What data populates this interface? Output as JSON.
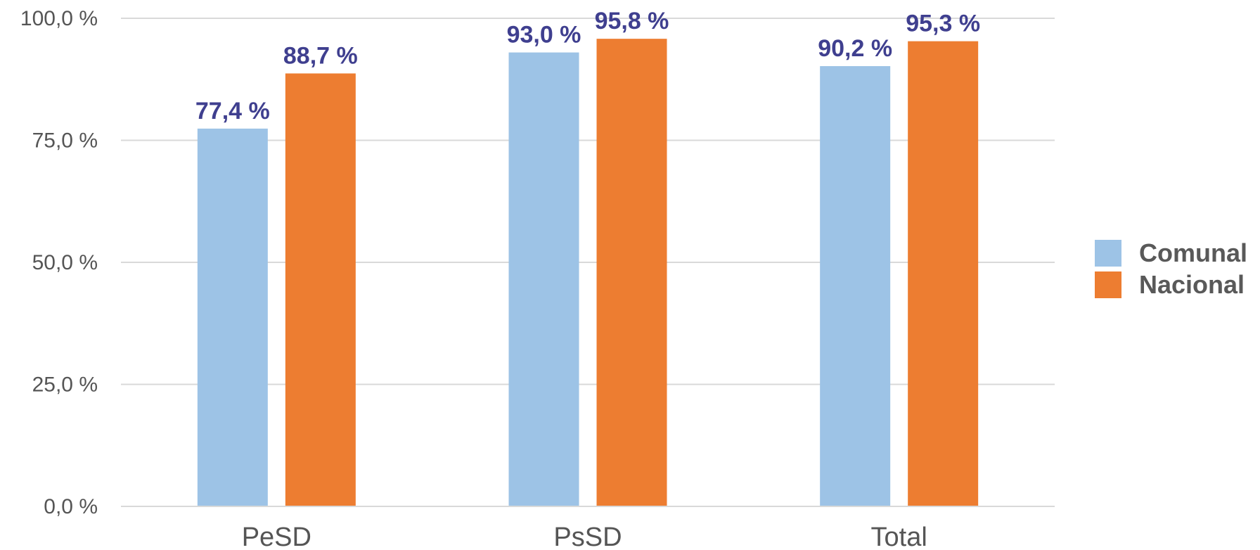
{
  "chart_data": {
    "type": "bar",
    "categories": [
      "PeSD",
      "PsSD",
      "Total"
    ],
    "series": [
      {
        "name": "Comunal",
        "values": [
          77.4,
          93.0,
          90.2
        ],
        "color": "#9DC3E6",
        "labels": [
          "77,4 %",
          "93,0 %",
          "90,2 %"
        ]
      },
      {
        "name": "Nacional",
        "values": [
          88.7,
          95.8,
          95.3
        ],
        "color": "#ED7D31",
        "labels": [
          "88,7 %",
          "95,8 %",
          "95,3 %"
        ]
      }
    ],
    "ylim": [
      0,
      100
    ],
    "yticks": [
      0,
      25,
      50,
      75,
      100
    ],
    "ytick_labels": [
      "0,0 %",
      "25,0 %",
      "50,0 %",
      "75,0 %",
      "100,0 %"
    ],
    "label_color": "#3F3F8F",
    "grid": true,
    "grid_color": "#D9D9D9",
    "legend_position": "right",
    "title": "",
    "xlabel": "",
    "ylabel": ""
  }
}
